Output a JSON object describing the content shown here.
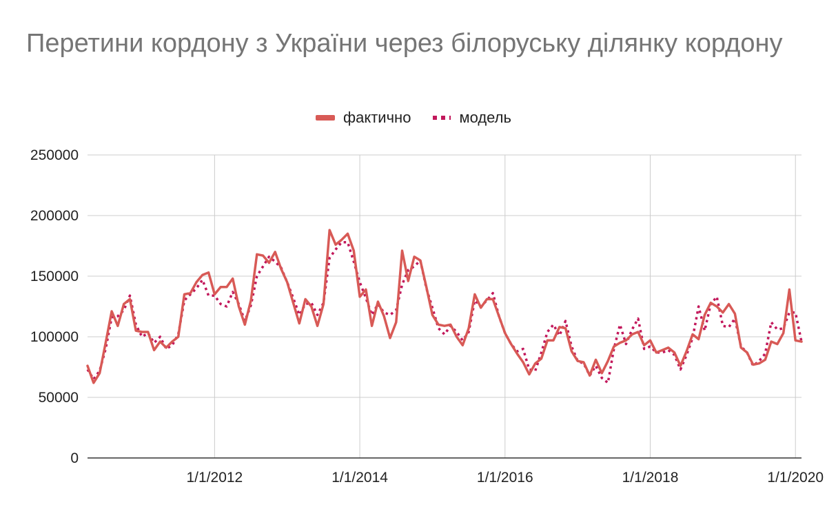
{
  "chart_data": {
    "type": "line",
    "title": "Перетини кордону з України через білоруську ділянку кордону",
    "xlabel": "",
    "ylabel": "",
    "ylim": [
      0,
      250000
    ],
    "yticks": [
      "0",
      "50000",
      "100000",
      "150000",
      "200000",
      "250000"
    ],
    "xticks": [
      "1/1/2012",
      "1/1/2014",
      "1/1/2016",
      "1/1/2018",
      "1/1/2020"
    ],
    "grid": true,
    "legend_position": "top",
    "x_start": "2010-04",
    "x_step": "month",
    "series": [
      {
        "name": "фактично",
        "color": "#d85a56",
        "style": "solid",
        "values": [
          76000,
          62000,
          70000,
          95000,
          121000,
          109000,
          127000,
          131000,
          105000,
          104000,
          104000,
          89000,
          96000,
          91000,
          96000,
          100000,
          135000,
          136000,
          145000,
          151000,
          153000,
          135000,
          141000,
          141000,
          148000,
          125000,
          110000,
          130000,
          168000,
          167000,
          161000,
          170000,
          156000,
          145000,
          128000,
          111000,
          131000,
          125000,
          109000,
          127000,
          188000,
          176000,
          180000,
          185000,
          171000,
          133000,
          139000,
          109000,
          129000,
          117000,
          99000,
          112000,
          171000,
          146000,
          166000,
          163000,
          141000,
          118000,
          110000,
          109000,
          110000,
          100000,
          93000,
          107000,
          135000,
          124000,
          131000,
          131000,
          117000,
          103000,
          94000,
          86000,
          79000,
          69000,
          78000,
          82000,
          97000,
          97000,
          108000,
          107000,
          88000,
          80000,
          79000,
          68000,
          81000,
          70000,
          80000,
          92000,
          95000,
          97000,
          102000,
          104000,
          93000,
          97000,
          87000,
          89000,
          91000,
          87000,
          76000,
          88000,
          102000,
          98000,
          118000,
          128000,
          125000,
          120000,
          127000,
          119000,
          91000,
          87000,
          77000,
          78000,
          81000,
          96000,
          94000,
          103000,
          139000,
          97000,
          96000
        ]
      },
      {
        "name": "модель",
        "color": "#c2185b",
        "style": "dotted",
        "values": [
          73000,
          65000,
          72000,
          90000,
          116000,
          117000,
          122000,
          134000,
          110000,
          100000,
          103000,
          95000,
          100000,
          90000,
          93000,
          102000,
          130000,
          135000,
          140000,
          147000,
          134000,
          134000,
          127000,
          125000,
          137000,
          127000,
          113000,
          126000,
          150000,
          158000,
          166000,
          162000,
          157000,
          145000,
          132000,
          118000,
          127000,
          128000,
          118000,
          128000,
          165000,
          172000,
          178000,
          178000,
          162000,
          145000,
          132000,
          118000,
          127000,
          120000,
          118000,
          122000,
          143000,
          155000,
          158000,
          163000,
          140000,
          124000,
          107000,
          102000,
          109000,
          104000,
          97000,
          104000,
          130000,
          125000,
          130000,
          136000,
          117000,
          103000,
          94000,
          88000,
          90000,
          73000,
          72000,
          87000,
          104000,
          110000,
          101000,
          113000,
          92000,
          80000,
          78000,
          68000,
          76000,
          66000,
          62000,
          90000,
          110000,
          94000,
          106000,
          115000,
          90000,
          92000,
          87000,
          87000,
          89000,
          85000,
          73000,
          85000,
          99000,
          125000,
          105000,
          127000,
          133000,
          109000,
          108000,
          115000,
          92000,
          87000,
          76000,
          80000,
          86000,
          112000,
          106000,
          107000,
          120000,
          120000,
          96000
        ]
      }
    ]
  }
}
